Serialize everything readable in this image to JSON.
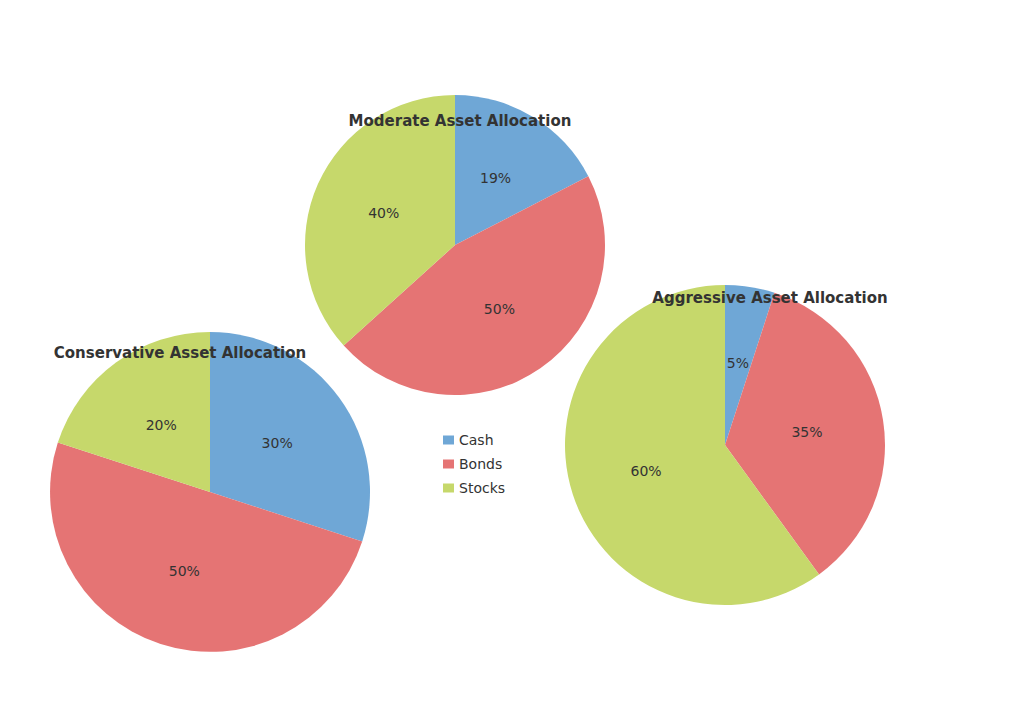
{
  "chart_data": [
    {
      "type": "pie",
      "title": "Moderate Asset Allocation",
      "categories": [
        "Cash",
        "Bonds",
        "Stocks"
      ],
      "values": [
        19,
        50,
        40
      ],
      "value_labels": [
        "19%",
        "50%",
        "40%"
      ],
      "colors": [
        "#6fa7d6",
        "#e57474",
        "#c6d86b"
      ],
      "data_labels": true
    },
    {
      "type": "pie",
      "title": "Conservative Asset Allocation",
      "categories": [
        "Cash",
        "Bonds",
        "Stocks"
      ],
      "values": [
        30,
        50,
        20
      ],
      "value_labels": [
        "30%",
        "50%",
        "20%"
      ],
      "colors": [
        "#6fa7d6",
        "#e57474",
        "#c6d86b"
      ],
      "data_labels": true,
      "legend": "right"
    },
    {
      "type": "pie",
      "title": "Aggressive Asset Allocation",
      "categories": [
        "Cash",
        "Bonds",
        "Stocks"
      ],
      "values": [
        5,
        35,
        60
      ],
      "value_labels": [
        "5%",
        "35%",
        "60%"
      ],
      "colors": [
        "#6fa7d6",
        "#e57474",
        "#c6d86b"
      ],
      "data_labels": true
    }
  ]
}
